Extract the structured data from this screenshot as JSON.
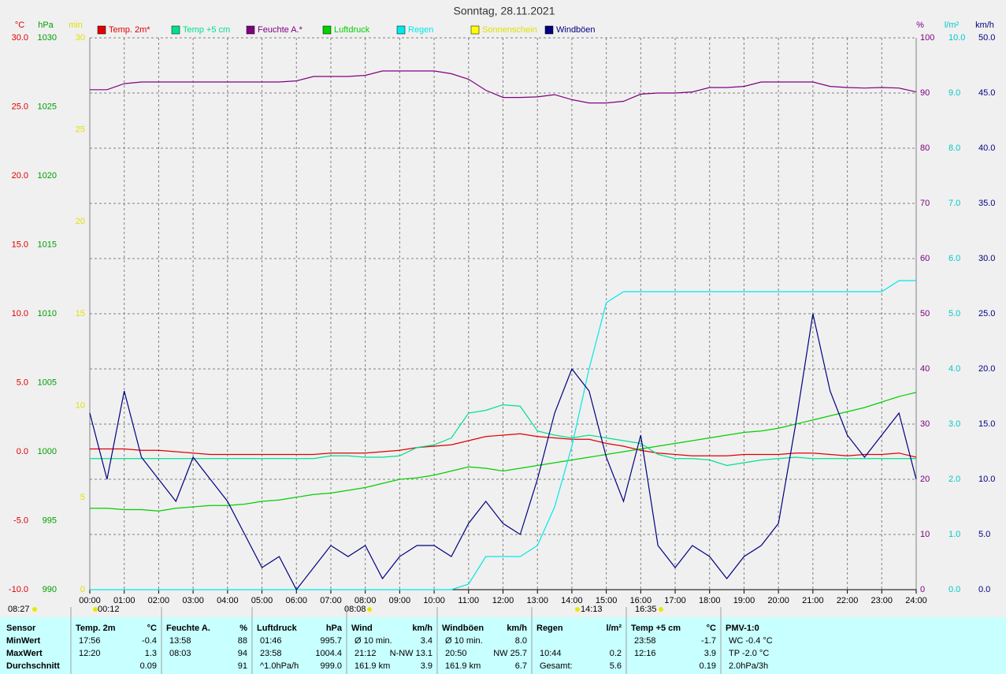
{
  "chart_data": {
    "type": "line",
    "title": "Sonntag, 28.11.2021",
    "grid": true,
    "x": [
      0,
      0.5,
      1,
      1.5,
      2,
      2.5,
      3,
      3.5,
      4,
      4.5,
      5,
      5.5,
      6,
      6.5,
      7,
      7.5,
      8,
      8.5,
      9,
      9.5,
      10,
      10.5,
      11,
      11.5,
      12,
      12.5,
      13,
      13.5,
      14,
      14.5,
      15,
      15.5,
      16,
      16.5,
      17,
      17.5,
      18,
      18.5,
      19,
      19.5,
      20,
      20.5,
      21,
      21.5,
      22,
      22.5,
      23,
      23.5,
      24
    ],
    "xlim": [
      0,
      24
    ],
    "xticks": [
      {
        "value": 0,
        "label": "00:00"
      },
      {
        "value": 1,
        "label": "01:00"
      },
      {
        "value": 2,
        "label": "02:00"
      },
      {
        "value": 3,
        "label": "03:00"
      },
      {
        "value": 4,
        "label": "04:00"
      },
      {
        "value": 5,
        "label": "05:00"
      },
      {
        "value": 6,
        "label": "06:00"
      },
      {
        "value": 7,
        "label": "07:00"
      },
      {
        "value": 8,
        "label": "08:00"
      },
      {
        "value": 9,
        "label": "09:00"
      },
      {
        "value": 10,
        "label": "10:00"
      },
      {
        "value": 11,
        "label": "11:00"
      },
      {
        "value": 12,
        "label": "12:00"
      },
      {
        "value": 13,
        "label": "13:00"
      },
      {
        "value": 14,
        "label": "14:00"
      },
      {
        "value": 15,
        "label": "15:00"
      },
      {
        "value": 16,
        "label": "16:00"
      },
      {
        "value": 17,
        "label": "17:00"
      },
      {
        "value": 18,
        "label": "18:00"
      },
      {
        "value": 19,
        "label": "19:00"
      },
      {
        "value": 20,
        "label": "20:00"
      },
      {
        "value": 21,
        "label": "21:00"
      },
      {
        "value": 22,
        "label": "22:00"
      },
      {
        "value": 23,
        "label": "23:00"
      },
      {
        "value": 24,
        "label": "24:00"
      }
    ],
    "axes": {
      "y": {
        "label": "°C",
        "color": "#e00000",
        "lim": [
          -10,
          30
        ],
        "ticks": [
          {
            "value": -10,
            "label": "-10.0"
          },
          {
            "value": -5,
            "label": "-5.0"
          },
          {
            "value": 0,
            "label": "0.0"
          },
          {
            "value": 5,
            "label": "5.0"
          },
          {
            "value": 10,
            "label": "10.0"
          },
          {
            "value": 15,
            "label": "15.0"
          },
          {
            "value": 20,
            "label": "20.0"
          },
          {
            "value": 25,
            "label": "25.0"
          },
          {
            "value": 30,
            "label": "30.0"
          }
        ]
      },
      "y2": {
        "label": "hPa",
        "color": "#00a000",
        "lim": [
          990,
          1030
        ],
        "ticks": [
          990,
          995,
          1000,
          1005,
          1010,
          1015,
          1020,
          1025,
          1030
        ]
      },
      "y3": {
        "label": "min",
        "color": "#e0e000",
        "lim": [
          0,
          30
        ],
        "ticks": [
          0,
          5,
          10,
          15,
          20,
          25,
          30
        ]
      },
      "y4": {
        "label": "%",
        "color": "#800080",
        "lim": [
          0,
          100
        ],
        "ticks": [
          0,
          10,
          20,
          30,
          40,
          50,
          60,
          70,
          80,
          90,
          100
        ]
      },
      "y5": {
        "label": "l/m²",
        "color": "#00c8c8",
        "lim": [
          0,
          10
        ],
        "ticks": [
          {
            "value": 0,
            "label": "0.0"
          },
          {
            "value": 1,
            "label": "1.0"
          },
          {
            "value": 2,
            "label": "2.0"
          },
          {
            "value": 3,
            "label": "3.0"
          },
          {
            "value": 4,
            "label": "4.0"
          },
          {
            "value": 5,
            "label": "5.0"
          },
          {
            "value": 6,
            "label": "6.0"
          },
          {
            "value": 7,
            "label": "7.0"
          },
          {
            "value": 8,
            "label": "8.0"
          },
          {
            "value": 9,
            "label": "9.0"
          },
          {
            "value": 10,
            "label": "10.0"
          }
        ]
      },
      "y6": {
        "label": "km/h",
        "color": "#000080",
        "lim": [
          0,
          50
        ],
        "ticks": [
          {
            "value": 0,
            "label": "0.0"
          },
          {
            "value": 5,
            "label": "5.0"
          },
          {
            "value": 10,
            "label": "10.0"
          },
          {
            "value": 15,
            "label": "15.0"
          },
          {
            "value": 20,
            "label": "20.0"
          },
          {
            "value": 25,
            "label": "25.0"
          },
          {
            "value": 30,
            "label": "30.0"
          },
          {
            "value": 35,
            "label": "35.0"
          },
          {
            "value": 40,
            "label": "40.0"
          },
          {
            "value": 45,
            "label": "45.0"
          },
          {
            "value": 50,
            "label": "50.0"
          }
        ]
      }
    },
    "series": [
      {
        "name": "Temp. 2m*",
        "color": "#e00000",
        "axis": "y",
        "values": [
          0.2,
          0.2,
          0.2,
          0.1,
          0.1,
          0,
          -0.1,
          -0.2,
          -0.2,
          -0.2,
          -0.2,
          -0.2,
          -0.2,
          -0.2,
          -0.1,
          -0.1,
          -0.1,
          0,
          0.1,
          0.3,
          0.4,
          0.5,
          0.8,
          1.1,
          1.2,
          1.3,
          1.1,
          1.0,
          0.9,
          0.9,
          0.6,
          0.4,
          0.1,
          -0.1,
          -0.2,
          -0.3,
          -0.3,
          -0.3,
          -0.2,
          -0.2,
          -0.2,
          -0.1,
          -0.1,
          -0.2,
          -0.3,
          -0.2,
          -0.2,
          -0.1,
          -0.4
        ]
      },
      {
        "name": "Temp +5 cm",
        "color": "#00e08c",
        "axis": "y",
        "values": [
          -0.5,
          -0.5,
          -0.5,
          -0.5,
          -0.5,
          -0.5,
          -0.5,
          -0.5,
          -0.5,
          -0.5,
          -0.5,
          -0.5,
          -0.5,
          -0.5,
          -0.3,
          -0.3,
          -0.4,
          -0.4,
          -0.3,
          0.3,
          0.5,
          1.0,
          2.8,
          3.0,
          3.4,
          3.3,
          1.5,
          1.2,
          1.0,
          1.2,
          1.0,
          0.8,
          0.6,
          -0.2,
          -0.5,
          -0.5,
          -0.6,
          -1.0,
          -0.8,
          -0.6,
          -0.5,
          -0.4,
          -0.5,
          -0.5,
          -0.5,
          -0.5,
          -0.5,
          -0.5,
          -0.5
        ]
      },
      {
        "name": "Feuchte A.*",
        "color": "#800080",
        "axis": "y4",
        "values": [
          90.6,
          90.6,
          91.7,
          92,
          92,
          92,
          92,
          92,
          92,
          92,
          92,
          92,
          92.2,
          93,
          93,
          93,
          93.2,
          94,
          94,
          94,
          94,
          93.5,
          92.5,
          90.5,
          89.2,
          89.2,
          89.3,
          89.7,
          88.8,
          88.2,
          88.2,
          88.5,
          89.8,
          90,
          90,
          90.2,
          91,
          91,
          91.2,
          92,
          92,
          92,
          92,
          91.2,
          91,
          90.9,
          91,
          90.9,
          90.2
        ]
      },
      {
        "name": "Luftdruck",
        "color": "#00d000",
        "axis": "y2",
        "values": [
          995.9,
          995.9,
          995.8,
          995.8,
          995.7,
          995.9,
          996.0,
          996.1,
          996.1,
          996.2,
          996.4,
          996.5,
          996.7,
          996.9,
          997.0,
          997.2,
          997.4,
          997.7,
          998.0,
          998.1,
          998.3,
          998.6,
          998.9,
          998.8,
          998.6,
          998.8,
          999.0,
          999.2,
          999.4,
          999.6,
          999.8,
          1000.0,
          1000.2,
          1000.4,
          1000.6,
          1000.8,
          1001.0,
          1001.2,
          1001.4,
          1001.5,
          1001.7,
          1002.0,
          1002.3,
          1002.6,
          1002.9,
          1003.2,
          1003.6,
          1004.0,
          1004.3
        ]
      },
      {
        "name": "Regen",
        "color": "#00e8e8",
        "axis": "y5",
        "values": [
          0,
          0,
          0,
          0,
          0,
          0,
          0,
          0,
          0,
          0,
          0,
          0,
          0,
          0,
          0,
          0,
          0,
          0,
          0,
          0,
          0,
          0,
          0.1,
          0.6,
          0.6,
          0.6,
          0.8,
          1.5,
          2.6,
          4.0,
          5.2,
          5.4,
          5.4,
          5.4,
          5.4,
          5.4,
          5.4,
          5.4,
          5.4,
          5.4,
          5.4,
          5.4,
          5.4,
          5.4,
          5.4,
          5.4,
          5.4,
          5.6,
          5.6
        ]
      },
      {
        "name": "Sonnenschein",
        "color": "#ffff00",
        "axis": "y3"
      },
      {
        "name": "Windböen",
        "color": "#000080",
        "axis": "y6",
        "values": [
          16,
          10,
          18,
          12,
          10,
          8,
          12,
          10,
          8,
          5,
          2,
          3,
          0,
          2,
          4,
          3,
          4,
          1,
          3,
          4,
          4,
          3,
          6,
          8,
          6,
          5,
          10,
          16,
          20,
          18,
          12,
          8,
          14,
          4,
          2,
          4,
          3,
          1,
          3,
          4,
          6,
          15,
          25,
          18,
          14,
          12,
          14,
          16,
          10
        ]
      }
    ],
    "time_markers": [
      "08:27",
      "00:12",
      "08:08",
      "14:13",
      "16:35"
    ]
  },
  "stats": {
    "sensor": "Sensor",
    "row_labels": [
      "MinWert",
      "MaxWert",
      "Durchschnitt"
    ],
    "groups": [
      {
        "name": "Temp. 2m",
        "unit": "°C",
        "rows": [
          [
            "17:56",
            "-0.4"
          ],
          [
            "12:20",
            "1.3"
          ],
          [
            null,
            "0.09"
          ]
        ]
      },
      {
        "name": "Feuchte A.",
        "unit": "%",
        "rows": [
          [
            "13:58",
            "88"
          ],
          [
            "08:03",
            "94"
          ],
          [
            null,
            "91"
          ]
        ]
      },
      {
        "name": "Luftdruck",
        "unit": "hPa",
        "rows": [
          [
            "01:46",
            "995.7"
          ],
          [
            "23:58",
            "1004.4"
          ],
          [
            "^1.0hPa/h",
            "999.0"
          ]
        ]
      },
      {
        "name": "Wind",
        "unit": "km/h",
        "rows": [
          [
            "Ø 10 min.",
            "3.4"
          ],
          [
            "21:12",
            "N-NW 13.1"
          ],
          [
            "161.9 km",
            "3.9"
          ]
        ]
      },
      {
        "name": "Windböen",
        "unit": "km/h",
        "rows": [
          [
            "Ø 10 min.",
            "8.0"
          ],
          [
            "20:50",
            "NW 25.7"
          ],
          [
            "161.9 km",
            "6.7"
          ]
        ]
      },
      {
        "name": "Regen",
        "unit": "l/m²",
        "rows": [
          [
            null,
            null
          ],
          [
            "10:44",
            "0.2"
          ],
          [
            "Gesamt:",
            "5.6"
          ]
        ]
      },
      {
        "name": "Temp +5 cm",
        "unit": "°C",
        "rows": [
          [
            "23:58",
            "-1.7"
          ],
          [
            "12:16",
            "3.9"
          ],
          [
            null,
            "0.19"
          ]
        ]
      },
      {
        "name": "PMV-1:0",
        "rows": [
          [
            "WC -0.4 °C"
          ],
          [
            "TP -2.0 °C"
          ],
          [
            "2.0hPa/3h"
          ]
        ]
      }
    ]
  }
}
